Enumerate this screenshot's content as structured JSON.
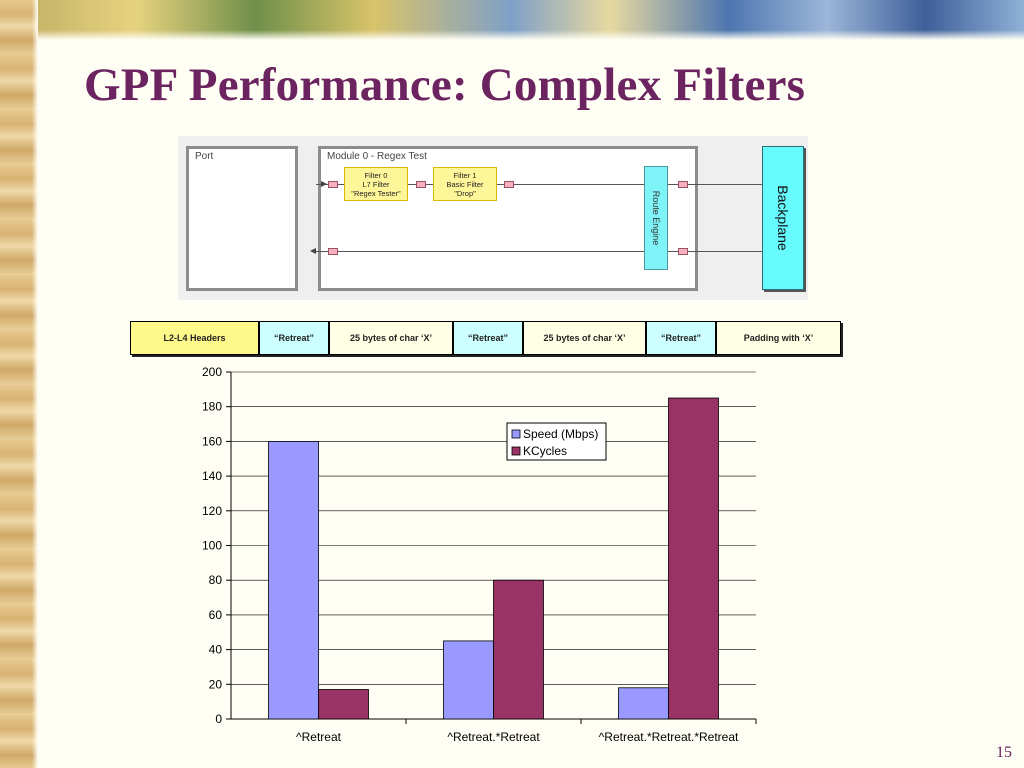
{
  "slide": {
    "title": "GPF Performance: Complex Filters",
    "page_number": "15"
  },
  "diagram": {
    "port_label": "Port",
    "module_label": "Module 0 - Regex Test",
    "filter0": [
      "Filter 0",
      "L7 Filter",
      "\"Regex Tester\""
    ],
    "filter1": [
      "Filter 1",
      "Basic Filter",
      "\"Drop\""
    ],
    "route_engine_label": "Route Engine",
    "backplane_label": "Backplane"
  },
  "packet": {
    "segments": [
      {
        "label": "L2-L4 Headers",
        "kind": "hdr"
      },
      {
        "label": "“Retreat”",
        "kind": "retreat"
      },
      {
        "label": "25 bytes of char ‘X’",
        "kind": "pad"
      },
      {
        "label": "“Retreat”",
        "kind": "retreat"
      },
      {
        "label": "25 bytes of char ‘X’",
        "kind": "pad"
      },
      {
        "label": "“Retreat”",
        "kind": "retreat"
      },
      {
        "label": "Padding with ‘X’",
        "kind": "pad"
      }
    ]
  },
  "chart_data": {
    "type": "bar",
    "categories": [
      "^Retreat",
      "^Retreat.*Retreat",
      "^Retreat.*Retreat.*Retreat"
    ],
    "series": [
      {
        "name": "Speed (Mbps)",
        "values": [
          160,
          45,
          18
        ],
        "color": "#9999ff"
      },
      {
        "name": "KCycles",
        "values": [
          17,
          80,
          185
        ],
        "color": "#993366"
      }
    ],
    "ylim": [
      0,
      200
    ],
    "yticks": [
      0,
      20,
      40,
      60,
      80,
      100,
      120,
      140,
      160,
      180,
      200
    ],
    "grid": true,
    "legend_position": "upper-middle-right",
    "title": "",
    "xlabel": "",
    "ylabel": ""
  }
}
